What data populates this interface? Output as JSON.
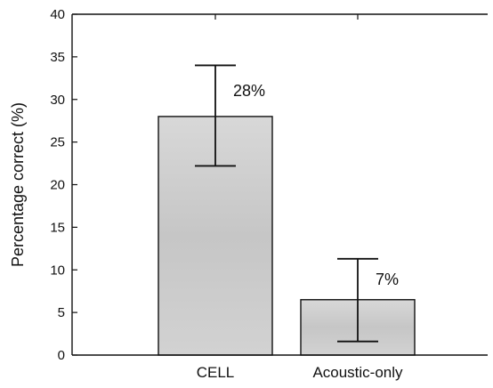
{
  "chart_data": {
    "type": "bar",
    "categories": [
      "CELL",
      "Acoustic-only"
    ],
    "values": [
      28,
      6.5
    ],
    "error_bars": [
      {
        "low": 22.2,
        "high": 34.0
      },
      {
        "low": 1.6,
        "high": 11.3
      }
    ],
    "data_labels": [
      "28%",
      "7%"
    ],
    "title": "",
    "xlabel": "",
    "ylabel": "Percentage correct (%)",
    "ylim": [
      0,
      40
    ],
    "yticks": [
      0,
      5,
      10,
      15,
      20,
      25,
      30,
      35,
      40
    ],
    "grid": false,
    "bar_color": "#cfcfcf",
    "axis_color": "#111111"
  }
}
